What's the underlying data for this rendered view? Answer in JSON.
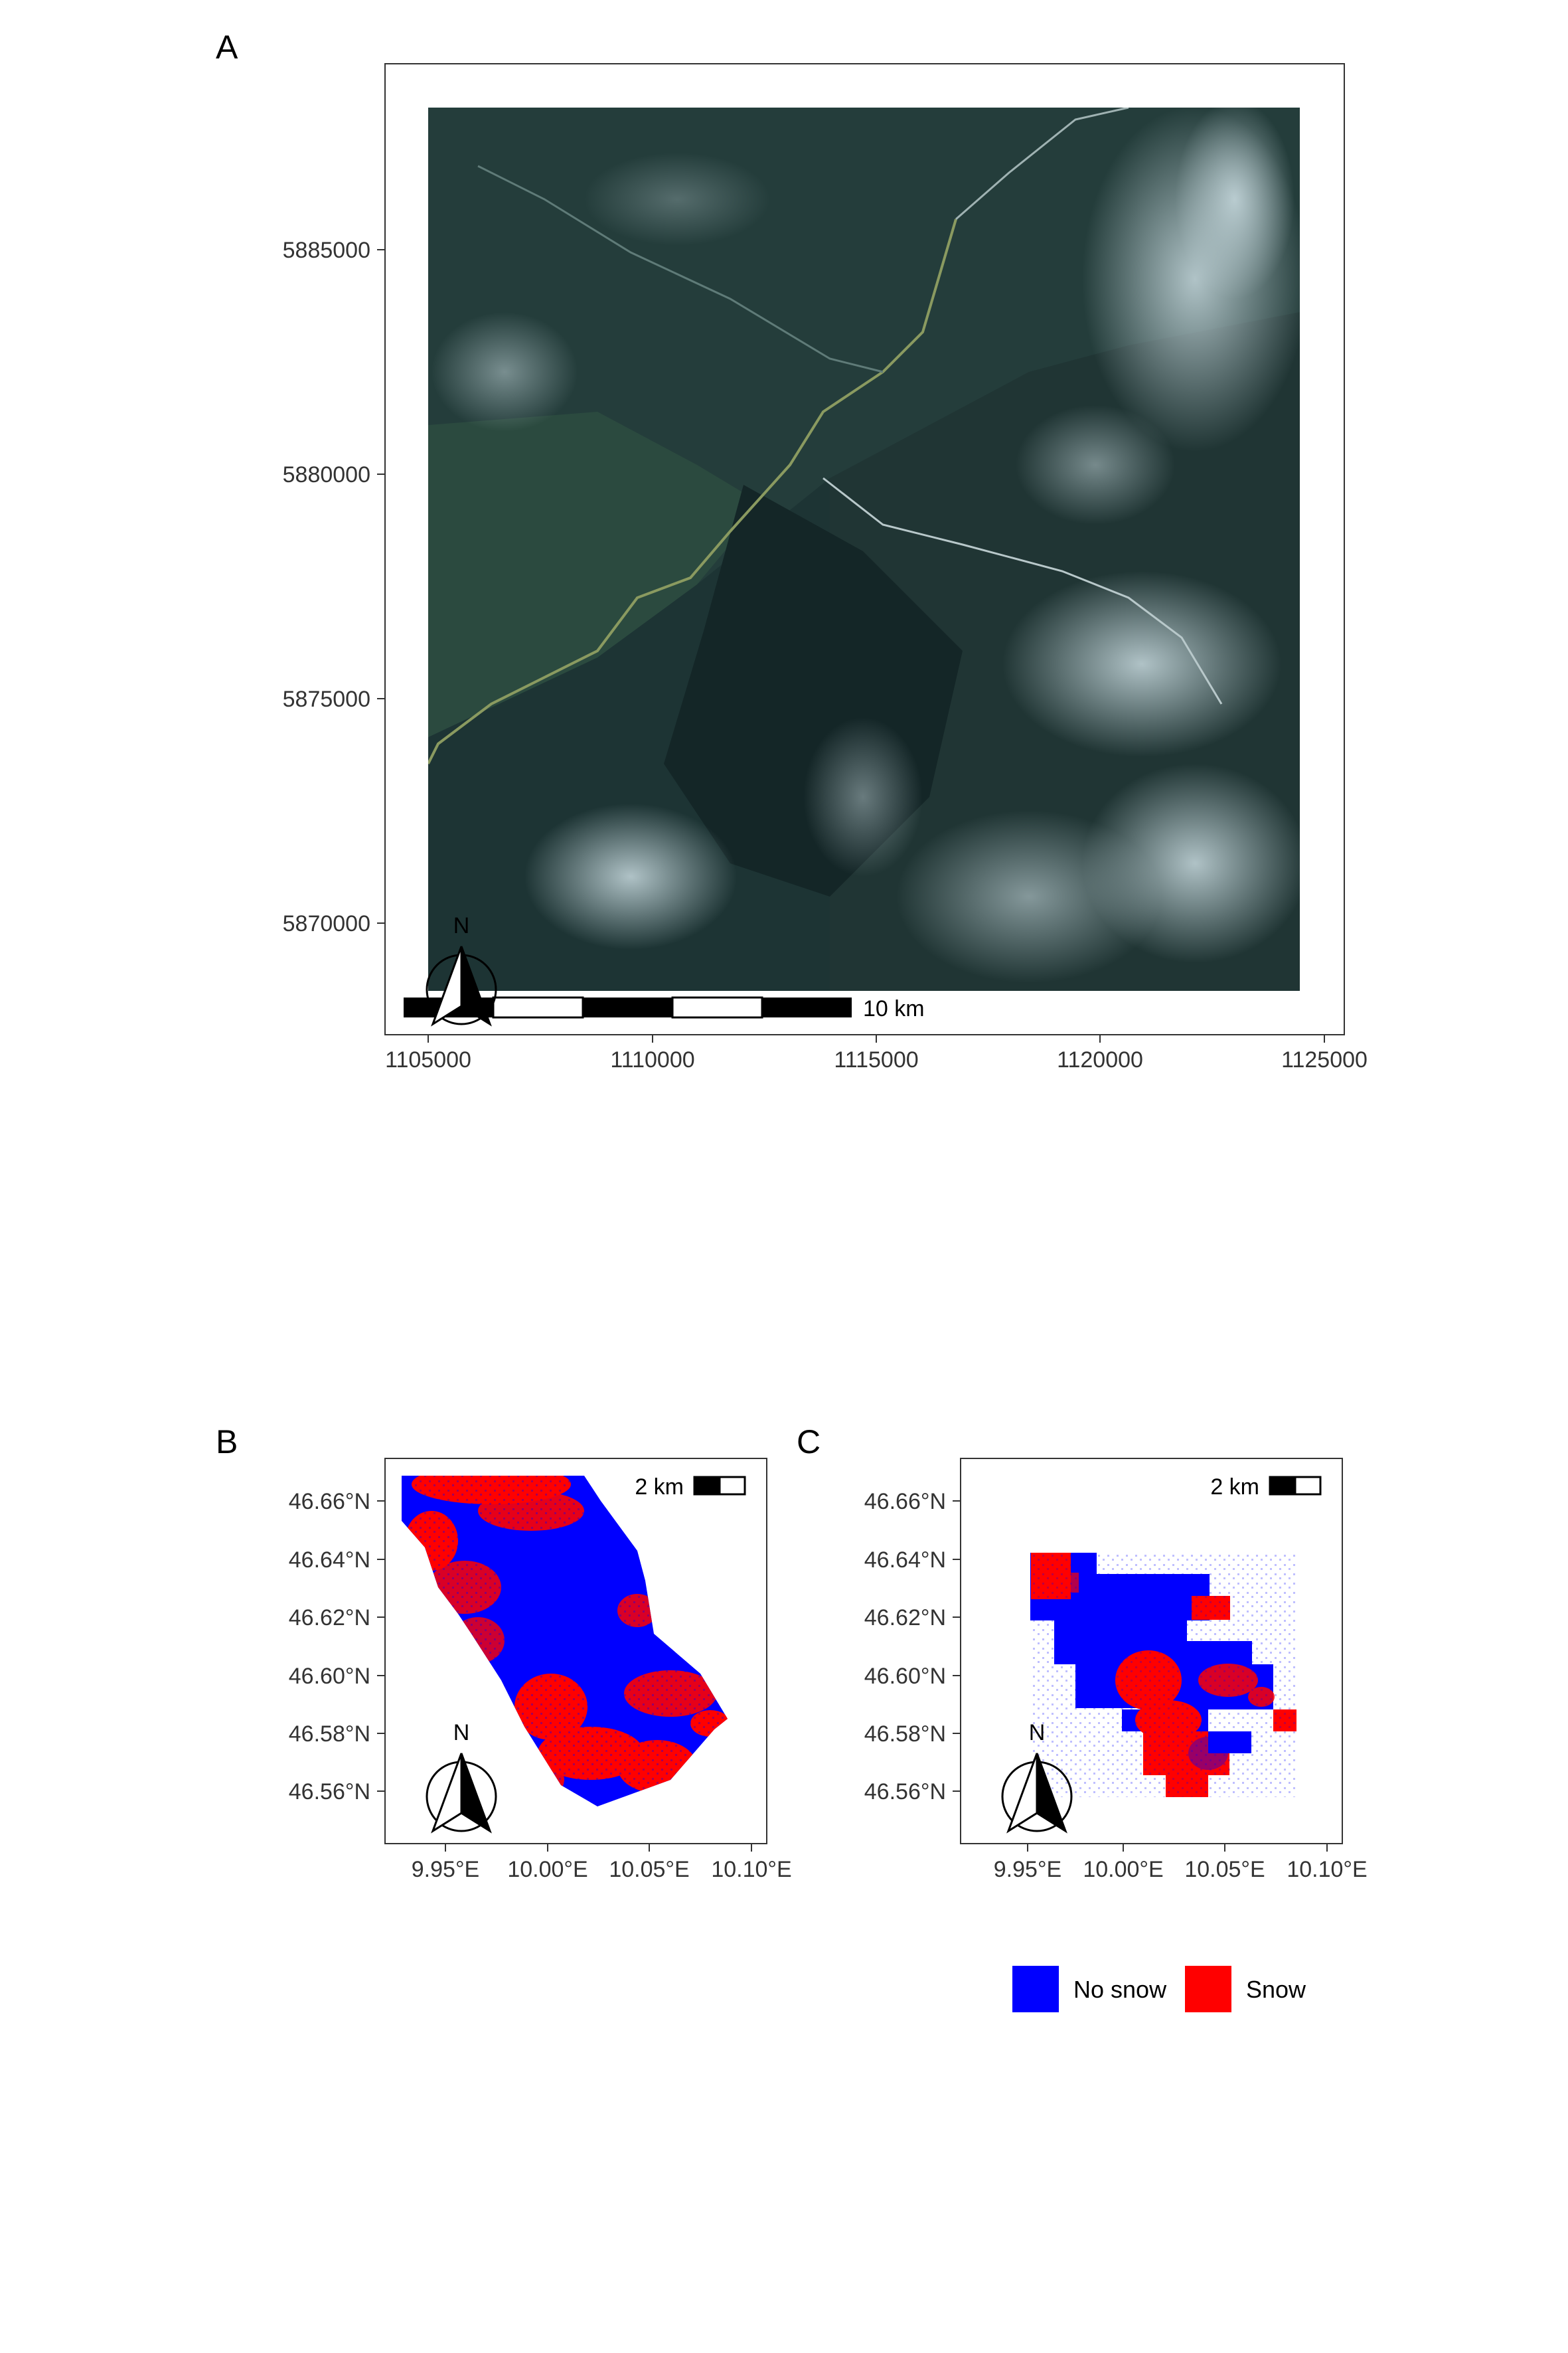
{
  "panels": {
    "A": {
      "label": "A",
      "x_ticks": [
        "1105000",
        "1110000",
        "1115000",
        "1120000",
        "1125000"
      ],
      "y_ticks": [
        "5885000",
        "5880000",
        "5875000",
        "5870000"
      ],
      "scale_label": "10 km",
      "north_label": "N"
    },
    "B": {
      "label": "B",
      "x_ticks": [
        "9.95°E",
        "10.00°E",
        "10.05°E",
        "10.10°E"
      ],
      "y_ticks": [
        "46.66°N",
        "46.64°N",
        "46.62°N",
        "46.60°N",
        "46.58°N",
        "46.56°N"
      ],
      "scale_label": "2 km",
      "north_label": "N"
    },
    "C": {
      "label": "C",
      "x_ticks": [
        "9.95°E",
        "10.00°E",
        "10.05°E",
        "10.10°E"
      ],
      "y_ticks": [
        "46.66°N",
        "46.64°N",
        "46.62°N",
        "46.60°N",
        "46.58°N",
        "46.56°N"
      ],
      "scale_label": "2 km",
      "north_label": "N"
    }
  },
  "legend": [
    {
      "label": "No snow",
      "color": "#0000ff"
    },
    {
      "label": "Snow",
      "color": "#ff0000"
    }
  ],
  "colors": {
    "no_snow": "#0000ff",
    "snow": "#ff0000",
    "imagery_dark": "#1b2e2e",
    "imagery_snow": "#b9cfd4"
  },
  "icons": [
    "north-arrow-icon",
    "scale-bar-icon"
  ]
}
